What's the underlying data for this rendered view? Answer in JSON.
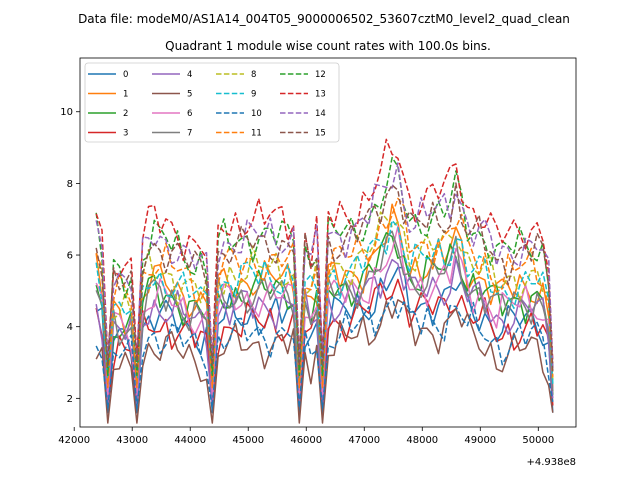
{
  "chart_data": {
    "type": "line",
    "suptitle": "Data file: modeM0/AS1A14_004T05_9000006502_53607cztM0_level2_quad_clean",
    "title": "Quadrant 1 module wise count rates with 100.0s bins.",
    "xlabel": "",
    "ylabel": "",
    "x_offset_label": "+4.938e8",
    "xlim": [
      42100,
      50650
    ],
    "ylim": [
      1.2,
      11.5
    ],
    "x_ticks": [
      42000,
      43000,
      44000,
      45000,
      46000,
      47000,
      48000,
      49000,
      50000
    ],
    "x_tick_labels": [
      "42000",
      "43000",
      "44000",
      "45000",
      "46000",
      "47000",
      "48000",
      "49000",
      "50000"
    ],
    "y_ticks": [
      2,
      4,
      6,
      8,
      10
    ],
    "y_tick_labels": [
      "2",
      "4",
      "6",
      "8",
      "10"
    ],
    "legend_position": "upper-left",
    "anchors": {
      "x": [
        42380,
        42560,
        43050,
        43300,
        43700,
        44000,
        44350,
        44500,
        45000,
        45500,
        45900,
        46120,
        46200,
        46300,
        46380,
        46800,
        47100,
        47550,
        47800,
        48100,
        48450,
        48600,
        48750,
        49100,
        49300,
        49500,
        49750,
        50050,
        50250
      ],
      "shape": [
        0.55,
        0.25,
        0.2,
        0.5,
        0.45,
        0.35,
        0.25,
        0.45,
        0.5,
        0.5,
        0.5,
        0.25,
        0.5,
        0.05,
        0.5,
        0.55,
        0.65,
        1.0,
        0.6,
        0.65,
        0.7,
        0.9,
        0.6,
        0.5,
        0.35,
        0.4,
        0.45,
        0.45,
        0.05
      ]
    },
    "series": [
      {
        "name": "0",
        "style": "solid",
        "color": "#1f77b4",
        "base": 4.3,
        "amp": 2.4,
        "min": 1.6
      },
      {
        "name": "1",
        "style": "solid",
        "color": "#ff7f0e",
        "base": 5.3,
        "amp": 3.2,
        "min": 2.3
      },
      {
        "name": "2",
        "style": "solid",
        "color": "#2ca02c",
        "base": 5.0,
        "amp": 3.2,
        "min": 2.1
      },
      {
        "name": "3",
        "style": "solid",
        "color": "#d62728",
        "base": 4.1,
        "amp": 2.6,
        "min": 1.8
      },
      {
        "name": "4",
        "style": "solid",
        "color": "#9467bd",
        "base": 4.6,
        "amp": 2.8,
        "min": 2.0
      },
      {
        "name": "5",
        "style": "solid",
        "color": "#8c564b",
        "base": 3.5,
        "amp": 2.6,
        "min": 1.6
      },
      {
        "name": "6",
        "style": "solid",
        "color": "#e377c2",
        "base": 4.8,
        "amp": 2.8,
        "min": 2.2
      },
      {
        "name": "7",
        "style": "solid",
        "color": "#7f7f7f",
        "base": 4.9,
        "amp": 3.0,
        "min": 2.2
      },
      {
        "name": "8",
        "style": "dashed",
        "color": "#bcbd22",
        "base": 5.6,
        "amp": 3.4,
        "min": 2.5
      },
      {
        "name": "9",
        "style": "dashed",
        "color": "#17becf",
        "base": 5.4,
        "amp": 3.3,
        "min": 2.4
      },
      {
        "name": "10",
        "style": "dashed",
        "color": "#1f77b4",
        "base": 3.8,
        "amp": 2.2,
        "min": 1.9
      },
      {
        "name": "11",
        "style": "dashed",
        "color": "#ff7f0e",
        "base": 5.8,
        "amp": 3.3,
        "min": 2.6
      },
      {
        "name": "12",
        "style": "dashed",
        "color": "#2ca02c",
        "base": 6.5,
        "amp": 3.7,
        "min": 2.8
      },
      {
        "name": "13",
        "style": "dashed",
        "color": "#d62728",
        "base": 7.0,
        "amp": 4.2,
        "min": 3.0
      },
      {
        "name": "14",
        "style": "dashed",
        "color": "#9467bd",
        "base": 6.5,
        "amp": 4.0,
        "min": 2.8
      },
      {
        "name": "15",
        "style": "dashed",
        "color": "#8c564b",
        "base": 6.3,
        "amp": 3.8,
        "min": 2.7
      }
    ]
  }
}
